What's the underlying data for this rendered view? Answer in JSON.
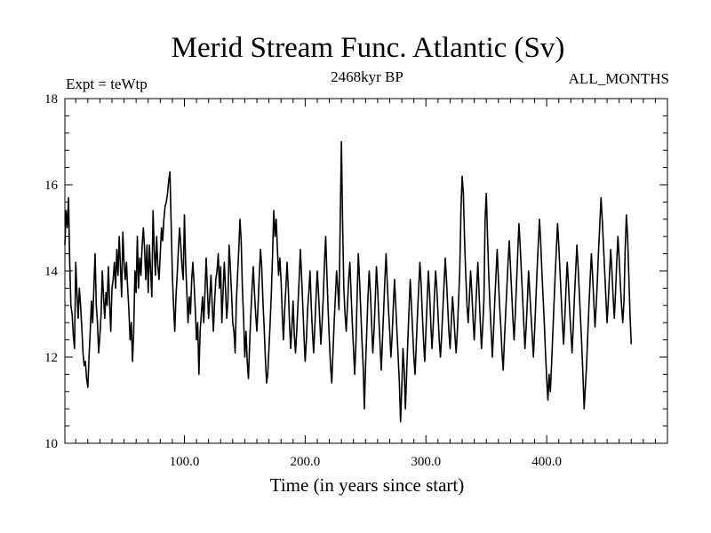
{
  "chart_data": {
    "type": "line",
    "title": "Merid Stream Func. Atlantic (Sv)",
    "subtitle_left": "Expt = teWtp",
    "subtitle_center": "2468kyr BP",
    "subtitle_right": "ALL_MONTHS",
    "xlabel": "Time (in years since start)",
    "ylabel": "",
    "xlim": [
      1,
      500
    ],
    "ylim": [
      10,
      18
    ],
    "x_ticks": [
      100,
      200,
      300,
      400
    ],
    "x_tick_labels": [
      "100.0",
      "200.0",
      "300.0",
      "400.0"
    ],
    "y_ticks": [
      10,
      12,
      14,
      16,
      18
    ],
    "y_tick_labels": [
      "10",
      "12",
      "14",
      "16",
      "18"
    ],
    "x_start": 1,
    "x_step": 1,
    "series": [
      {
        "name": "Merid Stream Func. Atlantic",
        "color": "#000000",
        "values": [
          14.6,
          15.4,
          15.0,
          15.7,
          14.2,
          13.2,
          13.0,
          12.5,
          12.2,
          14.2,
          13.5,
          12.9,
          13.6,
          13.2,
          12.7,
          12.1,
          11.8,
          11.9,
          11.5,
          11.3,
          12.0,
          12.6,
          13.3,
          12.8,
          13.6,
          14.4,
          13.2,
          12.8,
          12.1,
          12.5,
          13.0,
          14.0,
          13.4,
          12.9,
          13.5,
          13.2,
          14.1,
          13.3,
          12.6,
          13.6,
          13.8,
          14.2,
          13.6,
          14.5,
          13.9,
          14.8,
          14.1,
          13.4,
          14.9,
          14.2,
          13.8,
          14.2,
          13.6,
          13.1,
          12.4,
          12.8,
          11.9,
          12.6,
          14.0,
          13.5,
          14.8,
          13.6,
          14.3,
          13.9,
          14.6,
          15.0,
          14.5,
          13.8,
          14.6,
          13.5,
          14.6,
          14.0,
          13.4,
          15.4,
          14.5,
          13.9,
          14.8,
          14.1,
          13.8,
          14.4,
          15.0,
          14.7,
          15.2,
          15.5,
          15.6,
          15.8,
          16.1,
          16.3,
          15.1,
          13.9,
          13.2,
          12.6,
          13.4,
          13.9,
          14.5,
          15.0,
          14.6,
          14.1,
          13.8,
          15.3,
          14.2,
          13.5,
          12.8,
          13.4,
          13.0,
          13.8,
          14.2,
          13.7,
          13.1,
          12.4,
          12.8,
          11.6,
          12.6,
          13.0,
          13.4,
          12.8,
          13.5,
          14.3,
          13.6,
          12.9,
          13.4,
          13.9,
          13.2,
          12.6,
          13.3,
          13.8,
          14.0,
          14.4,
          13.6,
          14.1,
          12.8,
          13.5,
          14.2,
          13.6,
          12.9,
          13.3,
          14.6,
          14.1,
          13.5,
          12.8,
          12.6,
          12.1,
          13.3,
          13.9,
          14.5,
          15.2,
          14.7,
          13.6,
          12.9,
          12.0,
          12.6,
          11.9,
          11.5,
          12.3,
          13.0,
          13.6,
          14.1,
          13.5,
          13.0,
          12.6,
          13.2,
          13.9,
          14.5,
          14.1,
          13.3,
          12.7,
          12.0,
          11.4,
          11.6,
          12.2,
          12.8,
          13.5,
          14.4,
          15.4,
          14.8,
          15.2,
          14.5,
          13.9,
          14.3,
          13.8,
          13.0,
          12.4,
          13.1,
          13.6,
          14.2,
          13.6,
          12.8,
          12.2,
          12.7,
          13.3,
          12.5,
          12.1,
          12.6,
          13.2,
          13.8,
          14.5,
          13.9,
          13.2,
          12.5,
          11.9,
          12.4,
          13.1,
          13.5,
          14.0,
          13.2,
          12.6,
          12.1,
          12.7,
          13.4,
          14.0,
          13.5,
          12.9,
          12.3,
          12.8,
          13.4,
          14.2,
          14.8,
          13.9,
          13.1,
          12.4,
          11.8,
          11.4,
          12.1,
          12.8,
          13.4,
          14.0,
          13.6,
          13.1,
          15.1,
          17.0,
          15.1,
          13.6,
          13.0,
          12.6,
          13.2,
          13.8,
          14.2,
          13.5,
          12.8,
          12.2,
          11.6,
          12.3,
          13.4,
          14.4,
          13.8,
          13.1,
          12.4,
          11.8,
          10.8,
          11.8,
          12.6,
          13.4,
          14.0,
          13.5,
          12.8,
          12.1,
          12.6,
          13.3,
          14.1,
          13.6,
          12.9,
          12.3,
          11.7,
          12.4,
          13.1,
          13.8,
          14.4,
          13.7,
          13.1,
          12.6,
          12.0,
          12.5,
          13.2,
          13.8,
          13.2,
          12.6,
          12.0,
          11.4,
          10.5,
          11.3,
          12.2,
          11.7,
          10.8,
          11.6,
          12.4,
          13.1,
          13.8,
          13.2,
          12.6,
          12.0,
          11.6,
          12.3,
          13.0,
          13.6,
          14.2,
          13.7,
          13.0,
          12.4,
          11.9,
          12.6,
          13.3,
          14.0,
          13.5,
          12.8,
          12.2,
          12.7,
          13.4,
          14.0,
          13.6,
          13.0,
          12.4,
          12.0,
          12.5,
          13.1,
          13.7,
          14.3,
          13.8,
          13.2,
          12.6,
          12.2,
          12.8,
          13.4,
          13.0,
          12.5,
          12.1,
          12.6,
          13.3,
          14.0,
          15.4,
          16.2,
          15.8,
          14.7,
          13.9,
          13.2,
          12.8,
          13.4,
          14.0,
          13.5,
          12.9,
          12.4,
          13.0,
          13.6,
          14.2,
          13.5,
          12.8,
          12.2,
          12.7,
          13.3,
          15.2,
          15.8,
          14.8,
          13.9,
          13.2,
          12.6,
          12.0,
          12.6,
          13.3,
          13.9,
          14.5,
          13.8,
          13.2,
          12.7,
          12.1,
          11.7,
          12.4,
          13.0,
          13.6,
          14.2,
          14.7,
          14.1,
          13.5,
          12.9,
          12.4,
          13.0,
          13.7,
          14.4,
          15.1,
          14.6,
          14.0,
          13.4,
          12.8,
          12.2,
          12.7,
          13.3,
          14.0,
          13.5,
          13.0,
          12.5,
          12.0,
          12.6,
          13.3,
          14.0,
          14.6,
          15.2,
          14.7,
          14.0,
          13.4,
          12.8,
          12.1,
          11.5,
          11.0,
          11.6,
          11.2,
          11.8,
          12.5,
          13.2,
          13.9,
          14.5,
          15.1,
          14.6,
          14.0,
          13.4,
          12.8,
          12.3,
          12.9,
          13.6,
          14.2,
          13.7,
          13.1,
          12.6,
          12.1,
          12.7,
          13.4,
          14.0,
          14.6,
          14.1,
          13.5,
          12.9,
          12.3,
          11.6,
          10.8,
          11.3,
          11.8,
          12.5,
          13.2,
          13.8,
          14.4,
          13.9,
          13.3,
          12.7,
          13.2,
          13.8,
          14.5,
          15.1,
          15.7,
          15.2,
          14.6,
          14.0,
          13.4,
          12.8,
          13.3,
          13.9,
          14.5,
          14.0,
          13.4,
          12.9,
          13.5,
          14.2,
          14.8,
          14.3,
          13.7,
          13.2,
          12.8,
          13.3,
          14.5,
          15.3,
          14.8,
          13.9,
          13.0,
          12.3
        ]
      }
    ]
  }
}
